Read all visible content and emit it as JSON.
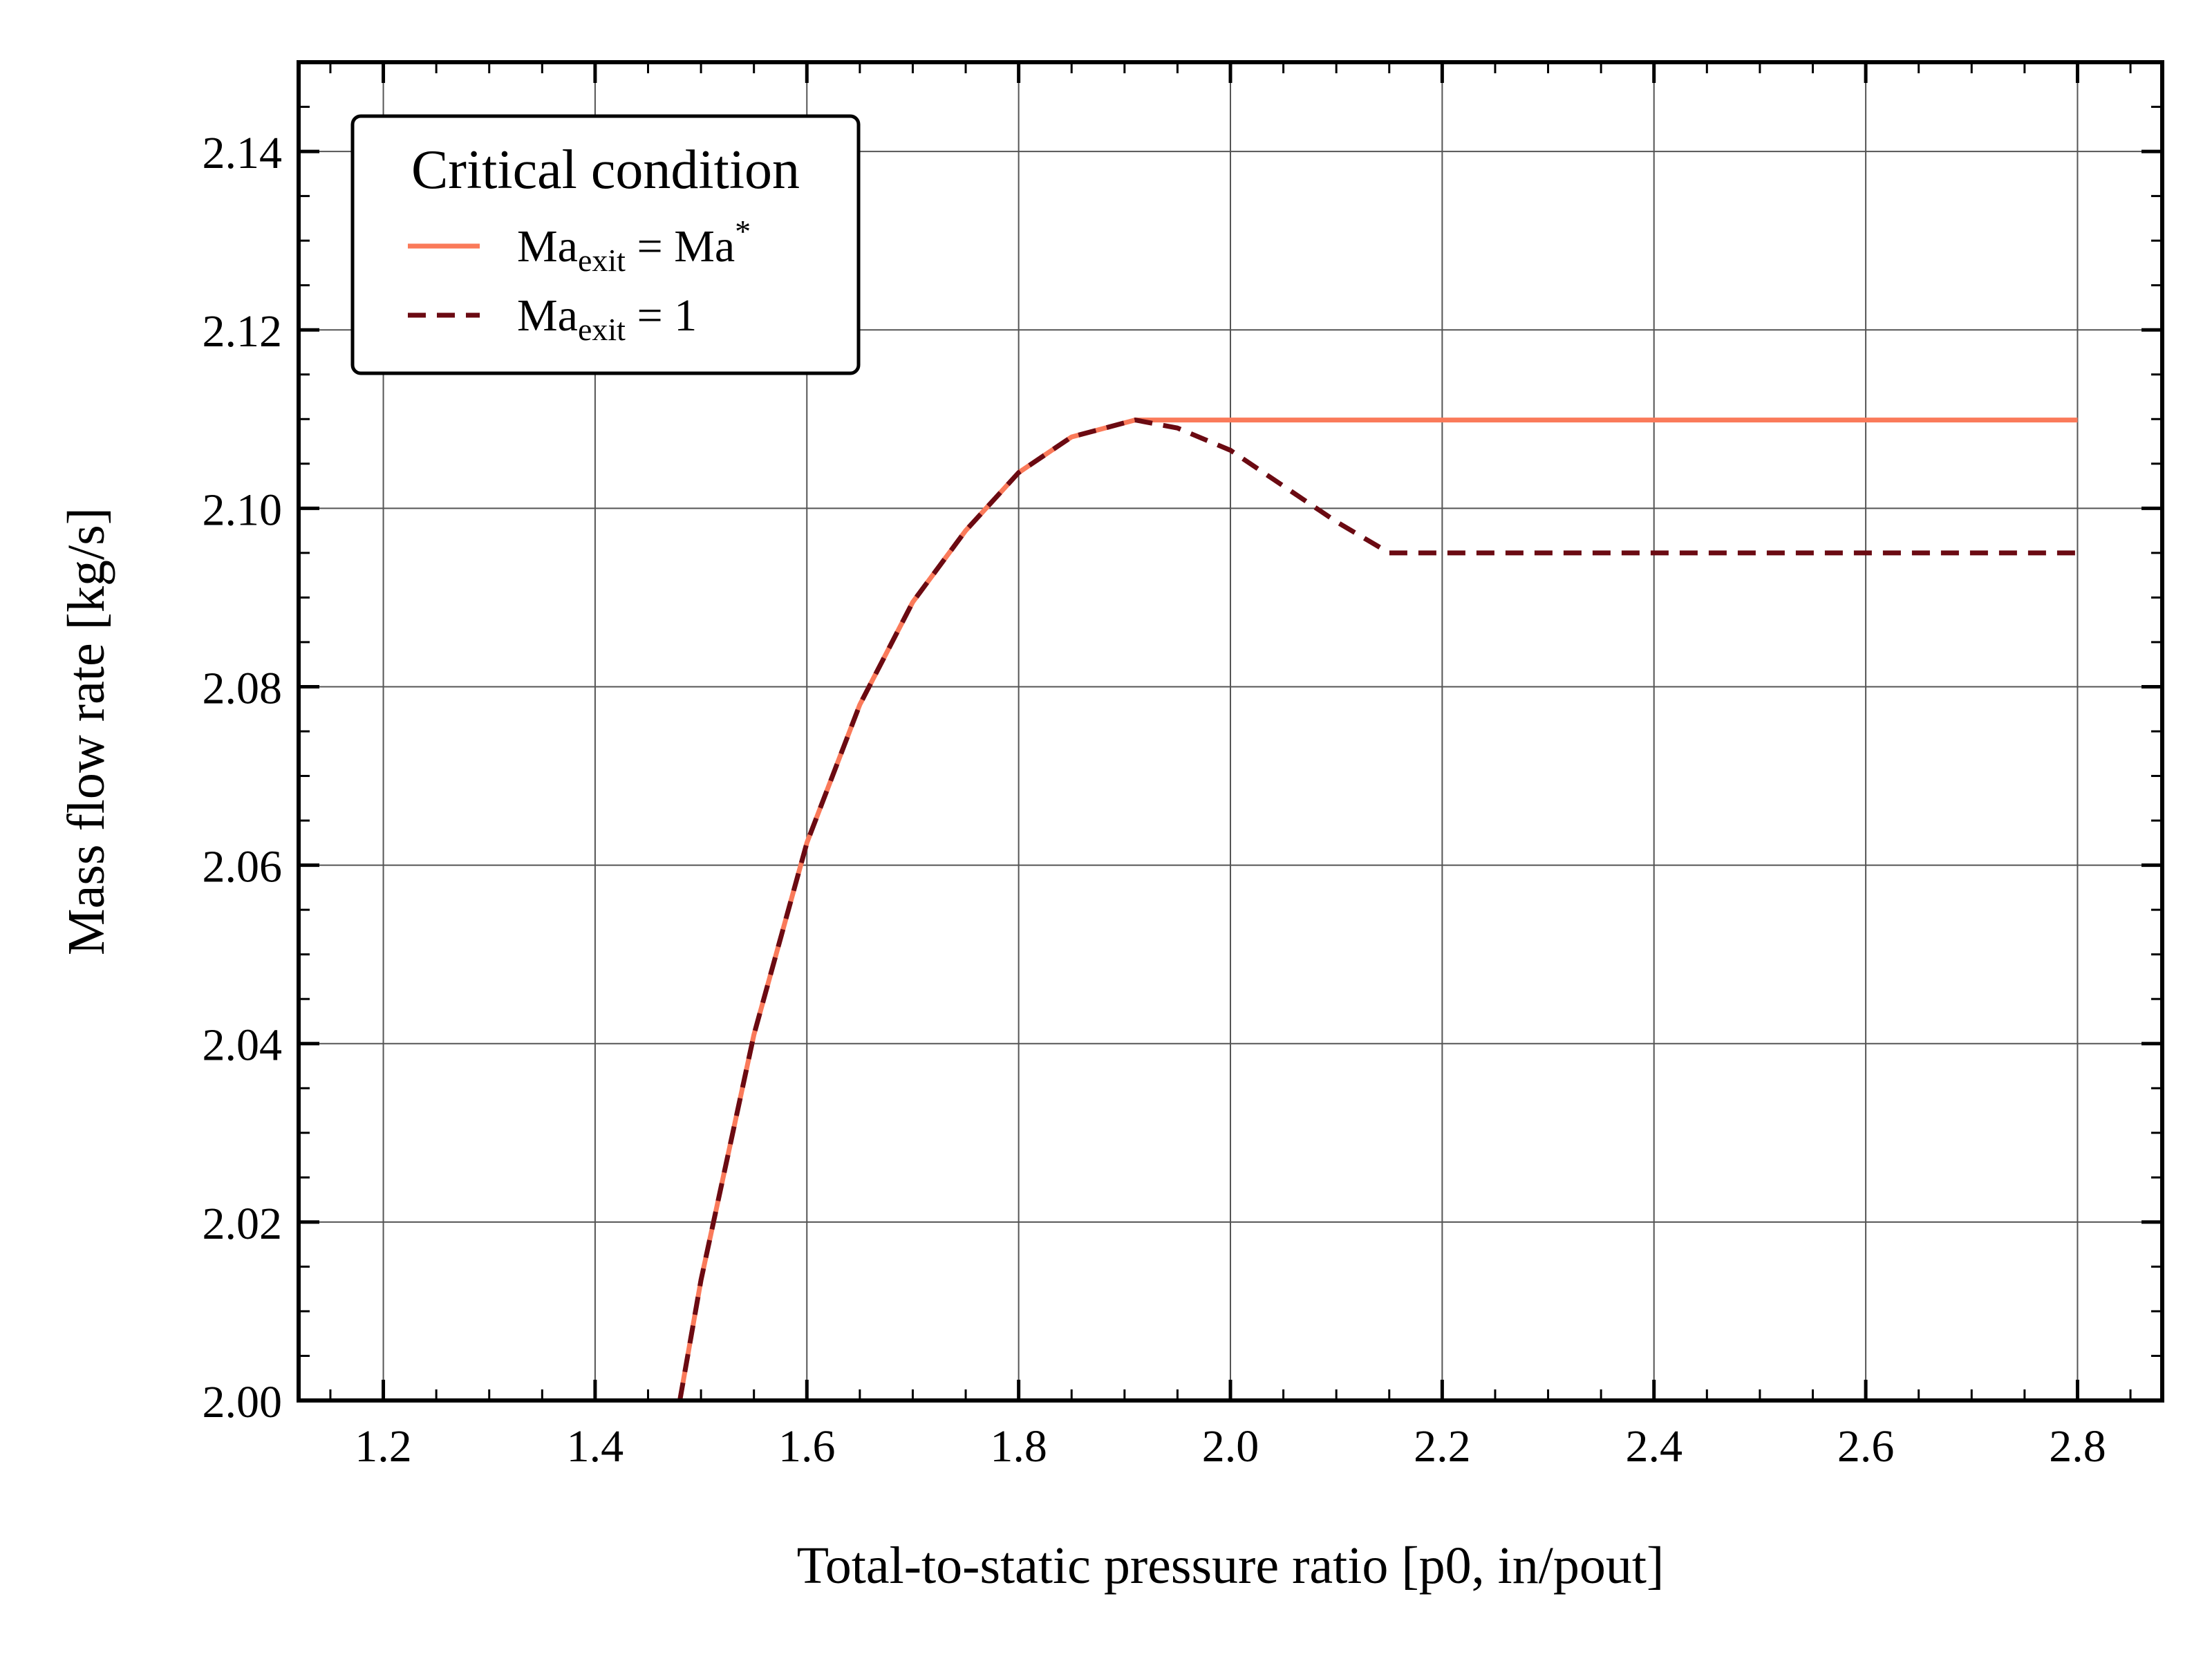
{
  "chart_data": {
    "type": "line",
    "xlabel": "Total-to-static pressure ratio [p0, in/pout]",
    "ylabel": "Mass flow rate [kg/s]",
    "xlim": [
      1.12,
      2.88
    ],
    "ylim": [
      2.0,
      2.15
    ],
    "xticks": [
      "1.2",
      "1.4",
      "1.6",
      "1.8",
      "2.0",
      "2.2",
      "2.4",
      "2.6",
      "2.8"
    ],
    "yticks": [
      "2.00",
      "2.02",
      "2.04",
      "2.06",
      "2.08",
      "2.10",
      "2.12",
      "2.14"
    ],
    "grid": true,
    "legend": {
      "title": "Critical condition",
      "placement": "top-left",
      "entries": [
        "Ma_exit = Ma*",
        "Ma_exit = 1"
      ]
    },
    "series": [
      {
        "name": "Ma_exit = Ma*",
        "color": "#fa7a5a",
        "style": "solid",
        "points": [
          [
            1.48,
            2.0
          ],
          [
            1.5,
            2.0135
          ],
          [
            1.55,
            2.041
          ],
          [
            1.6,
            2.0625
          ],
          [
            1.65,
            2.078
          ],
          [
            1.7,
            2.0895
          ],
          [
            1.75,
            2.0975
          ],
          [
            1.8,
            2.104
          ],
          [
            1.85,
            2.108
          ],
          [
            1.91,
            2.1099
          ],
          [
            1.95,
            2.1099
          ],
          [
            2.2,
            2.1099
          ],
          [
            2.5,
            2.1099
          ],
          [
            2.8,
            2.1099
          ]
        ]
      },
      {
        "name": "Ma_exit = 1",
        "color": "#6b0a12",
        "style": "dashed",
        "points": [
          [
            1.48,
            2.0
          ],
          [
            1.5,
            2.0135
          ],
          [
            1.55,
            2.041
          ],
          [
            1.6,
            2.0625
          ],
          [
            1.65,
            2.078
          ],
          [
            1.7,
            2.0895
          ],
          [
            1.75,
            2.0975
          ],
          [
            1.8,
            2.104
          ],
          [
            1.85,
            2.108
          ],
          [
            1.91,
            2.1099
          ],
          [
            1.95,
            2.109
          ],
          [
            2.0,
            2.1065
          ],
          [
            2.05,
            2.1025
          ],
          [
            2.1,
            2.0985
          ],
          [
            2.15,
            2.095
          ],
          [
            2.5,
            2.095
          ],
          [
            2.8,
            2.095
          ]
        ]
      }
    ]
  }
}
